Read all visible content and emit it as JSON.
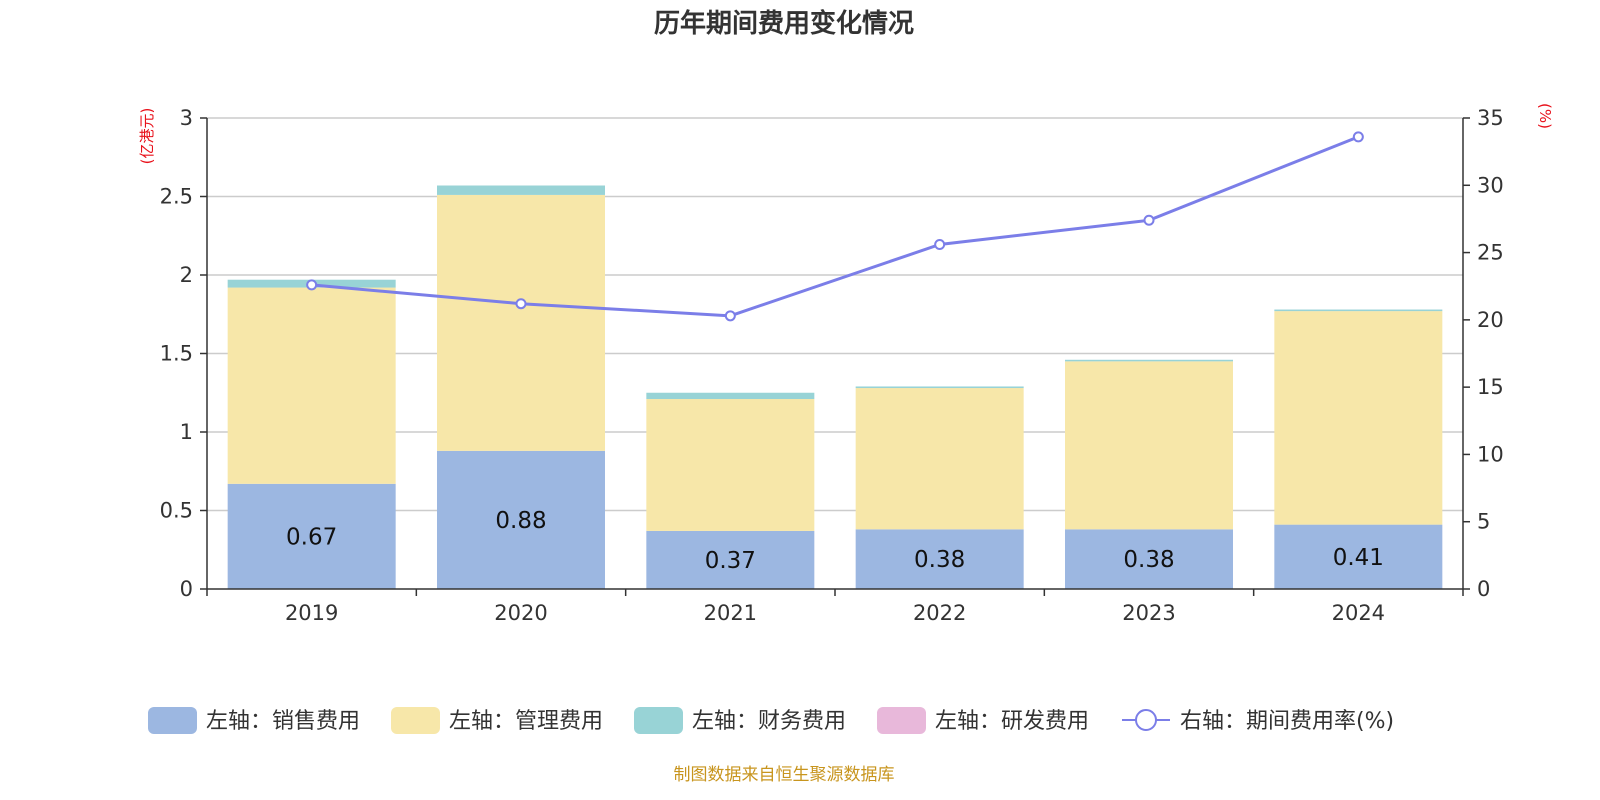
{
  "chart_data": {
    "type": "bar",
    "title": "历年期间费用变化情况",
    "categories": [
      "2019",
      "2020",
      "2021",
      "2022",
      "2023",
      "2024"
    ],
    "left_axis": {
      "unit_label": "(亿港元)",
      "ylim": [
        0,
        3
      ],
      "ticks": [
        "0",
        "0.5",
        "1",
        "1.5",
        "2",
        "2.5",
        "3"
      ]
    },
    "right_axis": {
      "unit_label": "(%)",
      "ylim": [
        0,
        35
      ],
      "ticks": [
        "0",
        "5",
        "10",
        "15",
        "20",
        "25",
        "30",
        "35"
      ]
    },
    "grid": true,
    "legend_position": "bottom",
    "series": [
      {
        "name": "左轴：销售费用",
        "type": "bar",
        "axis": "left",
        "color": "#9cb7e1",
        "values": [
          0.67,
          0.88,
          0.37,
          0.38,
          0.38,
          0.41
        ],
        "labels": [
          "0.67",
          "0.88",
          "0.37",
          "0.38",
          "0.38",
          "0.41"
        ]
      },
      {
        "name": "左轴：管理费用",
        "type": "bar",
        "axis": "left",
        "color": "#f7e7a9",
        "values": [
          1.25,
          1.63,
          0.84,
          0.9,
          1.07,
          1.36
        ]
      },
      {
        "name": "左轴：财务费用",
        "type": "bar",
        "axis": "left",
        "color": "#98d3d6",
        "values": [
          0.05,
          0.06,
          0.04,
          0.01,
          0.01,
          0.01
        ]
      },
      {
        "name": "左轴：研发费用",
        "type": "bar",
        "axis": "left",
        "color": "#e8b8da",
        "values": [
          0,
          0,
          0,
          0,
          0,
          0
        ]
      },
      {
        "name": "右轴：期间费用率(%)",
        "type": "line",
        "axis": "right",
        "color": "#7b7ee8",
        "values": [
          22.6,
          21.2,
          20.3,
          25.6,
          27.4,
          33.6
        ]
      }
    ],
    "source": "制图数据来自恒生聚源数据库"
  }
}
